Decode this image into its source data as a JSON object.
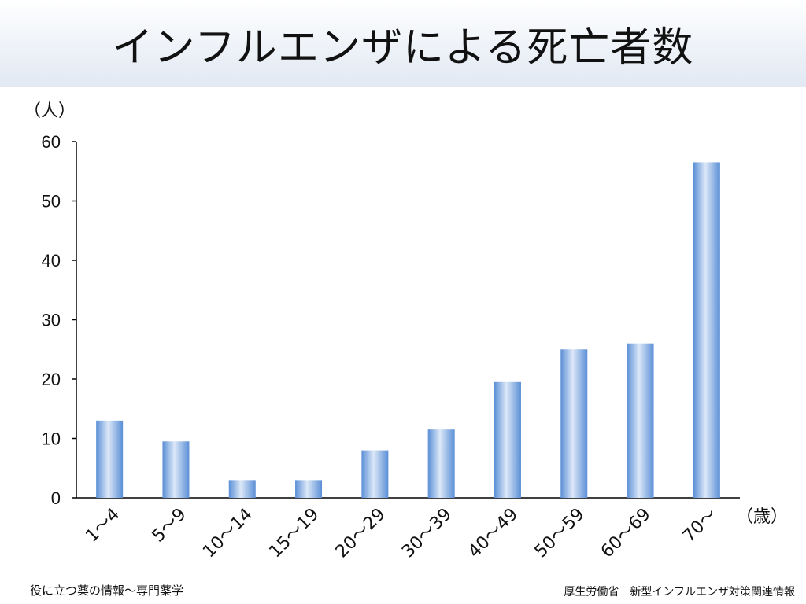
{
  "title": "インフルエンザによる死亡者数",
  "footer": {
    "left": "役に立つ薬の情報～専門薬学",
    "right": "厚生労働省　新型インフルエンザ対策関連情報"
  },
  "colors": {
    "bar_light": "#dce8f8",
    "bar_mid": "#9fc0ea",
    "bar_dark": "#5b8fd6"
  },
  "chart_data": {
    "type": "bar",
    "title": "インフルエンザによる死亡者数",
    "ylabel": "（人）",
    "xlabel": "（歳）",
    "ylim": [
      0,
      60
    ],
    "yticks": [
      0,
      10,
      20,
      30,
      40,
      50,
      60
    ],
    "grid": false,
    "categories": [
      "1～4",
      "5～9",
      "10～14",
      "15～19",
      "20～29",
      "30～39",
      "40～49",
      "50～59",
      "60～69",
      "70～"
    ],
    "values": [
      13,
      9.5,
      3,
      3,
      8,
      11.5,
      19.5,
      25,
      26,
      56.5
    ]
  }
}
